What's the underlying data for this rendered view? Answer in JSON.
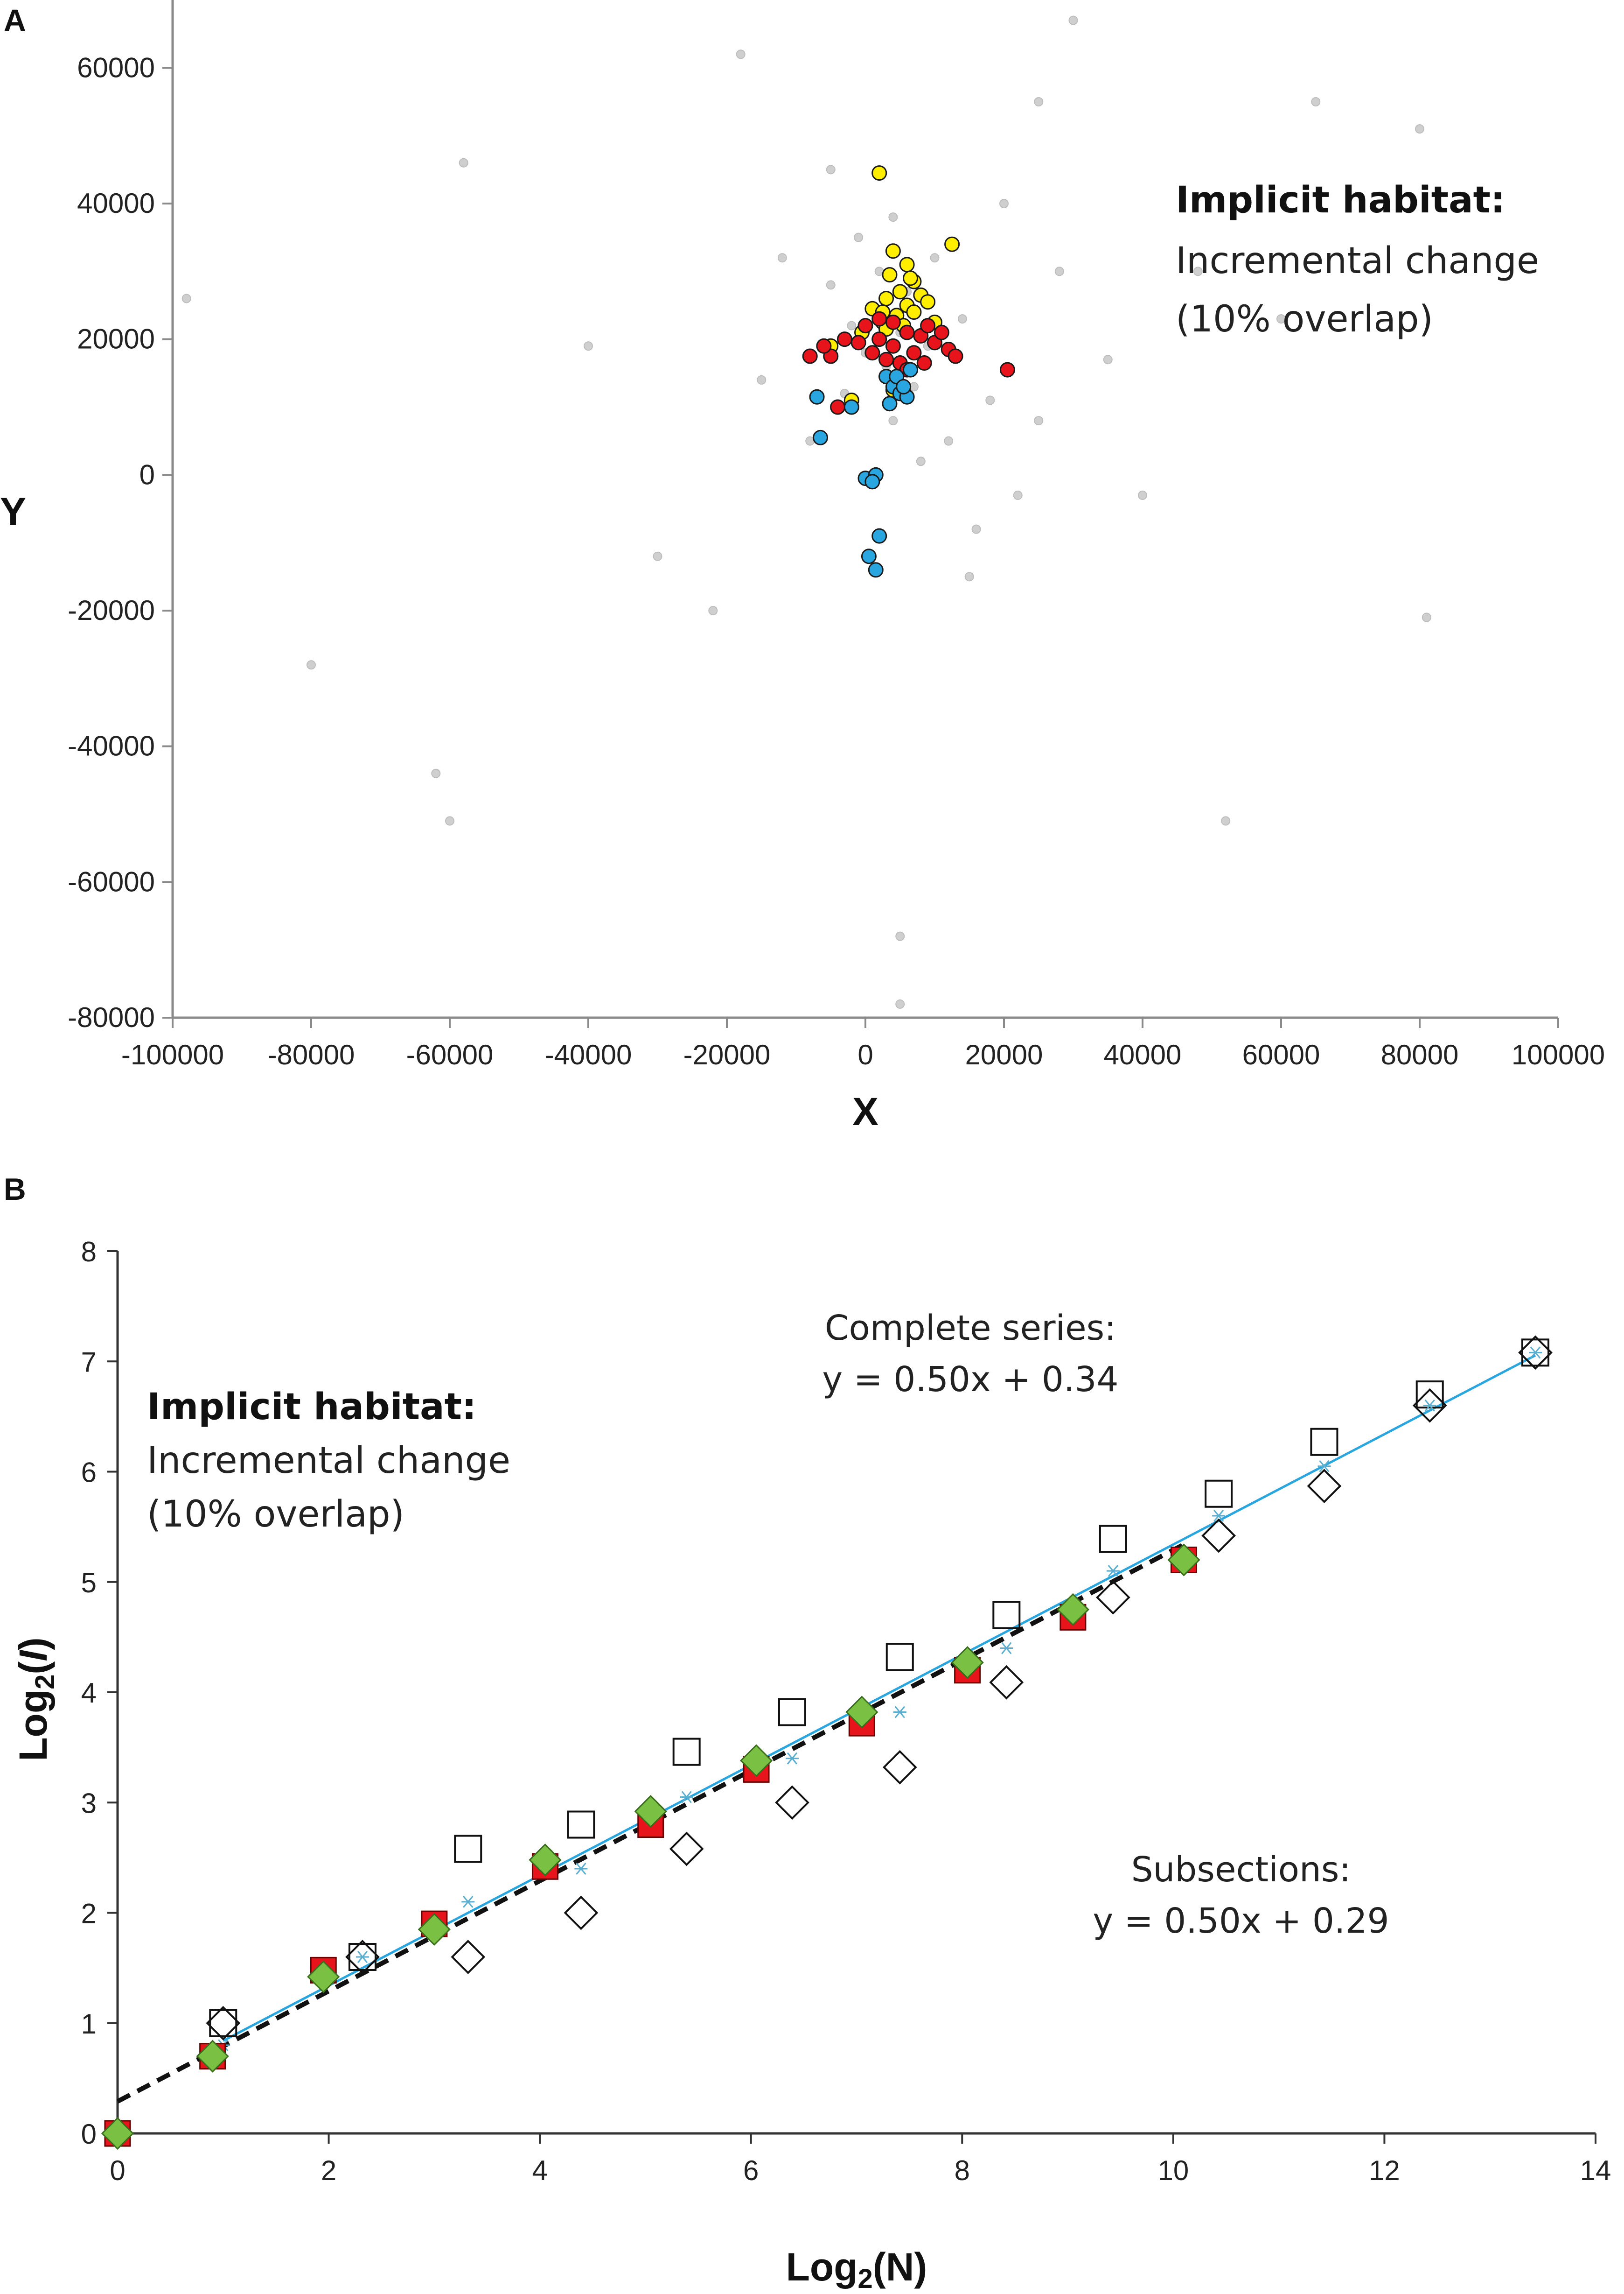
{
  "chart_data": [
    {
      "panel": "A",
      "type": "scatter",
      "xlabel": "X",
      "ylabel": "Y",
      "xlim": [
        -100000,
        100000
      ],
      "ylim": [
        -80000,
        70000
      ],
      "xticks": [
        "-100000",
        "-80000",
        "-60000",
        "-40000",
        "-20000",
        "0",
        "20000",
        "40000",
        "60000",
        "80000",
        "100000"
      ],
      "yticks": [
        "60000",
        "40000",
        "20000",
        "0",
        "-20000",
        "-40000",
        "-60000",
        "-80000"
      ],
      "annotation": {
        "title": "Implicit habitat:",
        "line1": "Incremental change",
        "line2": "(10% overlap)"
      },
      "series": [
        {
          "name": "background",
          "color": "#cfcfcf",
          "points": [
            [
              -98000,
              26000
            ],
            [
              -80000,
              -28000
            ],
            [
              -62000,
              -44000
            ],
            [
              -60000,
              -51000
            ],
            [
              -58000,
              46000
            ],
            [
              -40000,
              19000
            ],
            [
              -30000,
              -12000
            ],
            [
              -22000,
              -20000
            ],
            [
              -18000,
              62000
            ],
            [
              -12000,
              32000
            ],
            [
              -8000,
              5000
            ],
            [
              -5000,
              28000
            ],
            [
              -3000,
              12000
            ],
            [
              -2000,
              22000
            ],
            [
              -1000,
              35000
            ],
            [
              0,
              18000
            ],
            [
              1000,
              24000
            ],
            [
              2000,
              30000
            ],
            [
              3000,
              16000
            ],
            [
              4000,
              8000
            ],
            [
              4000,
              38000
            ],
            [
              5000,
              21000
            ],
            [
              6000,
              27000
            ],
            [
              7000,
              13000
            ],
            [
              8000,
              2000
            ],
            [
              9000,
              19000
            ],
            [
              10000,
              32000
            ],
            [
              12000,
              5000
            ],
            [
              14000,
              23000
            ],
            [
              16000,
              -8000
            ],
            [
              18000,
              11000
            ],
            [
              20000,
              40000
            ],
            [
              22000,
              -3000
            ],
            [
              25000,
              8000
            ],
            [
              28000,
              30000
            ],
            [
              30000,
              67000
            ],
            [
              35000,
              17000
            ],
            [
              40000,
              -3000
            ],
            [
              48000,
              30000
            ],
            [
              52000,
              -51000
            ],
            [
              60000,
              23000
            ],
            [
              65000,
              55000
            ],
            [
              80000,
              51000
            ],
            [
              81000,
              -21000
            ],
            [
              5000,
              -68000
            ],
            [
              5000,
              -78000
            ],
            [
              -5000,
              45000
            ],
            [
              -15000,
              14000
            ],
            [
              15000,
              -15000
            ],
            [
              25000,
              55000
            ]
          ]
        },
        {
          "name": "yellow",
          "color": "#ffee00",
          "points": [
            [
              2000,
              44500
            ],
            [
              12500,
              34000
            ],
            [
              4000,
              33000
            ],
            [
              6000,
              31000
            ],
            [
              3500,
              29500
            ],
            [
              7000,
              28500
            ],
            [
              5000,
              27000
            ],
            [
              8000,
              26500
            ],
            [
              3000,
              26000
            ],
            [
              6000,
              25000
            ],
            [
              9000,
              25500
            ],
            [
              4500,
              23500
            ],
            [
              7000,
              24000
            ],
            [
              1000,
              24500
            ],
            [
              10000,
              22500
            ],
            [
              5500,
              22000
            ],
            [
              2500,
              22500
            ],
            [
              -500,
              21000
            ],
            [
              3000,
              21500
            ],
            [
              -5000,
              19000
            ],
            [
              -2000,
              11000
            ],
            [
              4000,
              12500
            ],
            [
              6500,
              29000
            ],
            [
              2500,
              24000
            ]
          ]
        },
        {
          "name": "red",
          "color": "#e8141b",
          "points": [
            [
              -8000,
              17500
            ],
            [
              -3000,
              20000
            ],
            [
              0,
              22000
            ],
            [
              2000,
              20000
            ],
            [
              4000,
              19000
            ],
            [
              6000,
              21000
            ],
            [
              8000,
              20500
            ],
            [
              10000,
              19500
            ],
            [
              12000,
              18500
            ],
            [
              1000,
              18000
            ],
            [
              3000,
              17000
            ],
            [
              5000,
              16500
            ],
            [
              -1000,
              19500
            ],
            [
              7000,
              18000
            ],
            [
              9000,
              22000
            ],
            [
              11000,
              21000
            ],
            [
              -5000,
              17500
            ],
            [
              20500,
              15500
            ],
            [
              6000,
              15500
            ],
            [
              -4000,
              10000
            ],
            [
              4000,
              22500
            ],
            [
              2000,
              23000
            ],
            [
              -6000,
              19000
            ],
            [
              13000,
              17500
            ],
            [
              8500,
              16500
            ]
          ]
        },
        {
          "name": "blue",
          "color": "#29a6e0",
          "points": [
            [
              -7000,
              11500
            ],
            [
              -6500,
              5500
            ],
            [
              -2000,
              10000
            ],
            [
              3000,
              14500
            ],
            [
              4000,
              13000
            ],
            [
              5000,
              12000
            ],
            [
              6000,
              11500
            ],
            [
              3500,
              10500
            ],
            [
              6500,
              15500
            ],
            [
              0,
              -500
            ],
            [
              1500,
              0
            ],
            [
              1000,
              -1000
            ],
            [
              2000,
              -9000
            ],
            [
              500,
              -12000
            ],
            [
              1500,
              -14000
            ],
            [
              4500,
              14500
            ],
            [
              5500,
              13000
            ]
          ]
        }
      ]
    },
    {
      "panel": "B",
      "type": "scatter",
      "xlabel": "Log2(N)",
      "ylabel": "Log2(I)",
      "xlim": [
        0,
        14
      ],
      "ylim": [
        0,
        8
      ],
      "xticks": [
        "0",
        "2",
        "4",
        "6",
        "8",
        "10",
        "12",
        "14"
      ],
      "yticks": [
        "0",
        "1",
        "2",
        "3",
        "4",
        "5",
        "6",
        "7",
        "8"
      ],
      "annotation": {
        "title": "Implicit habitat:",
        "line1": "Incremental change",
        "line2": "(10% overlap)"
      },
      "complete_label": "Complete series:",
      "complete_eq": "y = 0.50x + 0.34",
      "subsections_label": "Subsections:",
      "subsections_eq": "y = 0.50x + 0.29",
      "series": [
        {
          "name": "open squares",
          "marker": "square-open",
          "points": [
            [
              1.0,
              1.0
            ],
            [
              2.32,
              1.6
            ],
            [
              3.32,
              2.58
            ],
            [
              4.39,
              2.8
            ],
            [
              5.39,
              3.46
            ],
            [
              6.39,
              3.82
            ],
            [
              7.41,
              4.32
            ],
            [
              8.42,
              4.7
            ],
            [
              9.43,
              5.39
            ],
            [
              10.43,
              5.8
            ],
            [
              11.43,
              6.27
            ],
            [
              12.43,
              6.7
            ],
            [
              13.43,
              7.08
            ]
          ]
        },
        {
          "name": "open diamonds",
          "marker": "diamond-open",
          "points": [
            [
              1.0,
              1.0
            ],
            [
              2.32,
              1.6
            ],
            [
              3.32,
              1.6
            ],
            [
              4.39,
              2.0
            ],
            [
              5.39,
              2.58
            ],
            [
              6.39,
              3.0
            ],
            [
              7.41,
              3.32
            ],
            [
              8.42,
              4.09
            ],
            [
              9.43,
              4.86
            ],
            [
              10.43,
              5.42
            ],
            [
              11.43,
              5.87
            ],
            [
              12.43,
              6.6
            ],
            [
              13.43,
              7.08
            ]
          ]
        },
        {
          "name": "asterisks",
          "marker": "asterisk",
          "points": [
            [
              1.0,
              0.8
            ],
            [
              2.32,
              1.6
            ],
            [
              3.32,
              2.1
            ],
            [
              4.39,
              2.4
            ],
            [
              5.39,
              3.05
            ],
            [
              6.39,
              3.4
            ],
            [
              7.41,
              3.82
            ],
            [
              8.42,
              4.4
            ],
            [
              9.43,
              5.1
            ],
            [
              10.43,
              5.6
            ],
            [
              11.43,
              6.05
            ],
            [
              12.43,
              6.6
            ],
            [
              13.43,
              7.08
            ]
          ]
        },
        {
          "name": "red squares",
          "marker": "square-filled",
          "color": "#e8141b",
          "points": [
            [
              0,
              0
            ],
            [
              0.9,
              0.7
            ],
            [
              1.95,
              1.48
            ],
            [
              3.0,
              1.9
            ],
            [
              4.05,
              2.42
            ],
            [
              5.05,
              2.8
            ],
            [
              6.05,
              3.3
            ],
            [
              7.05,
              3.72
            ],
            [
              8.05,
              4.2
            ],
            [
              9.05,
              4.68
            ],
            [
              10.1,
              5.2
            ]
          ]
        },
        {
          "name": "green diamonds",
          "marker": "diamond-filled",
          "color": "#7ac143",
          "points": [
            [
              0,
              0
            ],
            [
              0.9,
              0.7
            ],
            [
              1.95,
              1.42
            ],
            [
              3.0,
              1.85
            ],
            [
              4.05,
              2.48
            ],
            [
              5.05,
              2.92
            ],
            [
              6.05,
              3.38
            ],
            [
              7.05,
              3.82
            ],
            [
              8.05,
              4.27
            ],
            [
              9.05,
              4.75
            ],
            [
              10.1,
              5.2
            ]
          ]
        },
        {
          "name": "complete fit",
          "type": "line",
          "color": "#29a6e0",
          "slope": 0.5,
          "intercept": 0.34,
          "x_range": [
            1,
            13.43
          ]
        },
        {
          "name": "subsections fit",
          "type": "line",
          "color": "#111111",
          "dashed": true,
          "slope": 0.5,
          "intercept": 0.29,
          "x_range": [
            0,
            10.1
          ]
        }
      ]
    }
  ]
}
